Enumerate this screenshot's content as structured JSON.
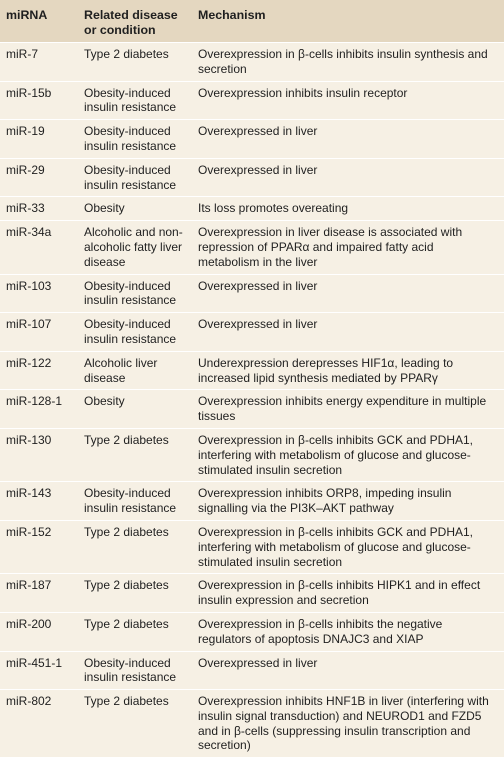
{
  "table": {
    "headers": {
      "mirna": "miRNA",
      "disease": "Related disease or condition",
      "mechanism": "Mechanism"
    },
    "rows": [
      {
        "mirna": "miR-7",
        "disease": "Type 2 diabetes",
        "mechanism": "Overexpression in β-cells inhibits insulin synthesis and secretion"
      },
      {
        "mirna": "miR-15b",
        "disease": "Obesity-induced insulin resistance",
        "mechanism": "Overexpression inhibits insulin receptor"
      },
      {
        "mirna": "miR-19",
        "disease": "Obesity-induced insulin resistance",
        "mechanism": "Overexpressed in liver"
      },
      {
        "mirna": "miR-29",
        "disease": "Obesity-induced insulin resistance",
        "mechanism": "Overexpressed in liver"
      },
      {
        "mirna": "miR-33",
        "disease": "Obesity",
        "mechanism": "Its loss promotes overeating"
      },
      {
        "mirna": "miR-34a",
        "disease": "Alcoholic and non-alcoholic fatty liver disease",
        "mechanism": "Overexpression in liver disease is associated with repression of PPARα and impaired fatty acid metabolism in the liver"
      },
      {
        "mirna": "miR-103",
        "disease": "Obesity-induced insulin resistance",
        "mechanism": "Overexpressed in liver"
      },
      {
        "mirna": "miR-107",
        "disease": "Obesity-induced insulin resistance",
        "mechanism": "Overexpressed in liver"
      },
      {
        "mirna": "miR-122",
        "disease": "Alcoholic liver disease",
        "mechanism": "Underexpression derepresses HIF1α, leading to increased lipid synthesis mediated by PPARγ"
      },
      {
        "mirna": "miR-128-1",
        "disease": "Obesity",
        "mechanism": "Overexpression inhibits energy expenditure in multiple tissues"
      },
      {
        "mirna": "miR-130",
        "disease": "Type 2 diabetes",
        "mechanism": "Overexpression in β-cells inhibits GCK and PDHA1, interfering with metabolism of glucose and glucose-stimulated insulin secretion"
      },
      {
        "mirna": "miR-143",
        "disease": "Obesity-induced insulin resistance",
        "mechanism": "Overexpression inhibits ORP8, impeding insulin signalling via the PI3K–AKT pathway"
      },
      {
        "mirna": "miR-152",
        "disease": "Type 2 diabetes",
        "mechanism": "Overexpression in β-cells inhibits GCK and PDHA1, interfering with metabolism of glucose and glucose-stimulated insulin secretion"
      },
      {
        "mirna": "miR-187",
        "disease": "Type 2 diabetes",
        "mechanism": "Overexpression in β-cells inhibits HIPK1 and in effect insulin expression and secretion"
      },
      {
        "mirna": "miR-200",
        "disease": "Type 2 diabetes",
        "mechanism": "Overexpression in β-cells inhibits the negative regulators of apoptosis DNAJC3 and XIAP"
      },
      {
        "mirna": "miR-451-1",
        "disease": "Obesity-induced insulin resistance",
        "mechanism": "Overexpressed in liver"
      },
      {
        "mirna": "miR-802",
        "disease": "Type 2 diabetes",
        "mechanism": "Overexpression inhibits HNF1B in liver (interfering with insulin signal transduction) and NEUROD1 and FZD5 and in β-cells (suppressing insulin transcription and secretion)"
      }
    ]
  }
}
